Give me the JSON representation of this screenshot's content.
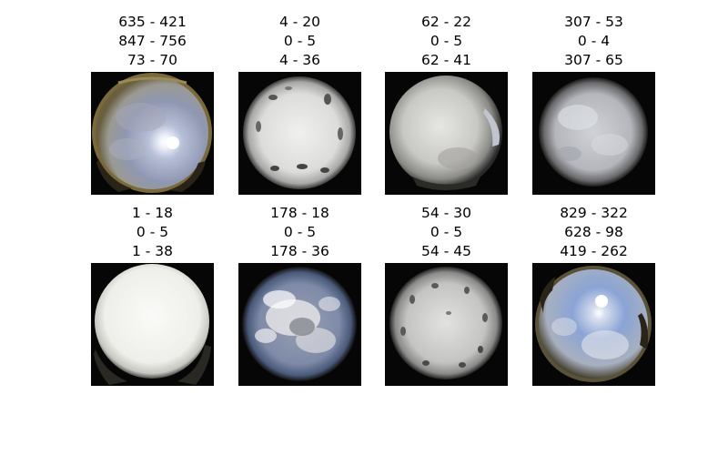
{
  "panels": [
    {
      "lines": [
        "635 - 421",
        "847 - 756",
        "73 - 70"
      ],
      "image": "all-sky-clear-sun-fisheye"
    },
    {
      "lines": [
        "4 - 20",
        "0 - 5",
        "4 - 36"
      ],
      "image": "all-sky-overcast-droplets-fisheye"
    },
    {
      "lines": [
        "62 - 22",
        "0 - 5",
        "62 - 41"
      ],
      "image": "all-sky-overcast-fisheye"
    },
    {
      "lines": [
        "307 - 53",
        "0 - 4",
        "307 - 65"
      ],
      "image": "all-sky-overcast-gray-fisheye"
    },
    {
      "lines": [
        "1 - 18",
        "0 - 5",
        "1 - 38"
      ],
      "image": "all-sky-white-overcast-fisheye"
    },
    {
      "lines": [
        "178 - 18",
        "0 - 5",
        "178 - 36"
      ],
      "image": "all-sky-broken-clouds-fisheye"
    },
    {
      "lines": [
        "54 - 30",
        "0 - 5",
        "54 - 45"
      ],
      "image": "all-sky-overcast-droplets-fisheye"
    },
    {
      "lines": [
        "829 - 322",
        "628 - 98",
        "419 - 262"
      ],
      "image": "all-sky-partly-cloudy-sun-fisheye"
    }
  ]
}
